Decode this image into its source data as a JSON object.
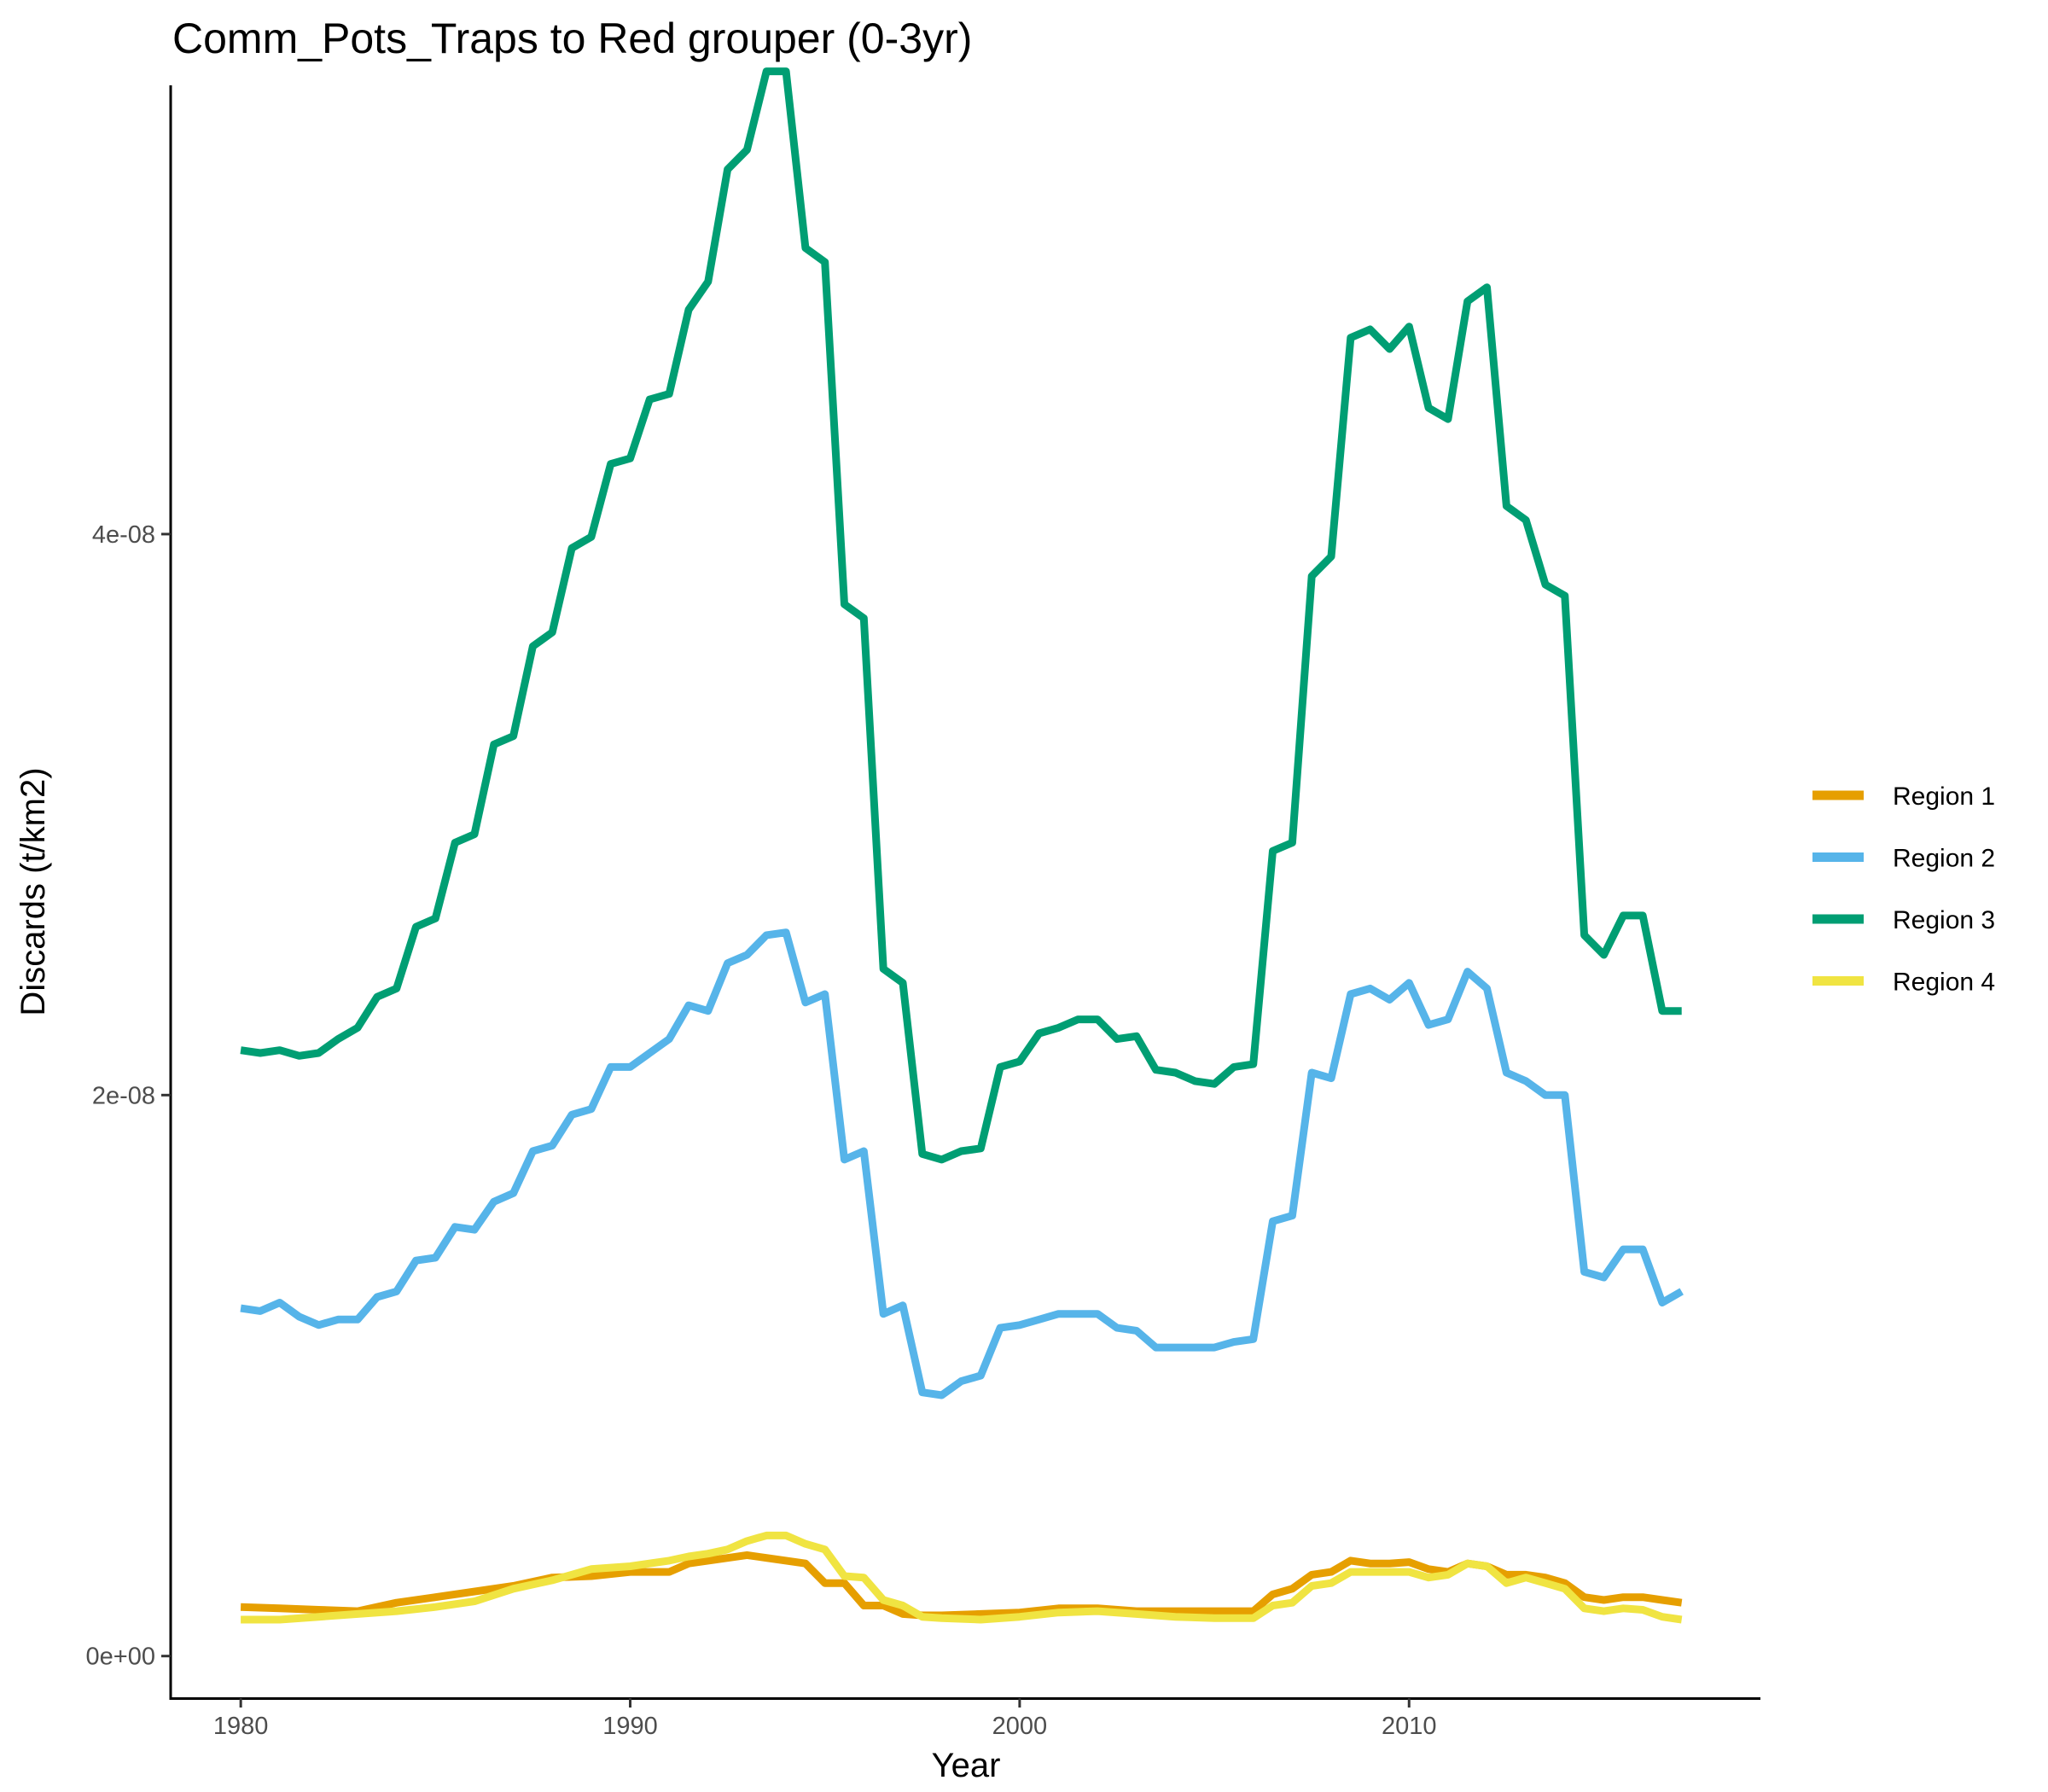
{
  "chart_data": {
    "type": "line",
    "title": "Comm_Pots_Traps to Red grouper (0-3yr)",
    "xlabel": "Year",
    "ylabel": "Discards (t/km2)",
    "xlim": [
      1978.2,
      2019.0
    ],
    "ylim": [
      -1.5e-09,
      5.6e-08
    ],
    "x_ticks": [
      {
        "value": 1980,
        "label": "1980"
      },
      {
        "value": 1990,
        "label": "1990"
      },
      {
        "value": 2000,
        "label": "2000"
      },
      {
        "value": 2010,
        "label": "2010"
      }
    ],
    "y_ticks": [
      {
        "value": 0,
        "label": "0e+00"
      },
      {
        "value": 2e-08,
        "label": "2e-08"
      },
      {
        "value": 4e-08,
        "label": "4e-08"
      }
    ],
    "grid": false,
    "legend": "right",
    "series": [
      {
        "name": "Region 1",
        "color": "#E69F00",
        "x": [
          1980.0,
          1981.0,
          1982.0,
          1983.0,
          1984.0,
          1985.0,
          1986.0,
          1987.0,
          1988.0,
          1989.0,
          1990.0,
          1991.0,
          1991.5,
          1992.0,
          1992.5,
          1993.0,
          1993.5,
          1994.0,
          1994.5,
          1995.0,
          1995.5,
          1996.0,
          1996.5,
          1997.0,
          1997.5,
          1998.0,
          1999.0,
          2000.0,
          2001.0,
          2002.0,
          2003.0,
          2004.0,
          2005.0,
          2006.0,
          2006.5,
          2007.0,
          2007.5,
          2008.0,
          2008.5,
          2009.0,
          2009.5,
          2010.0,
          2010.5,
          2011.0,
          2011.5,
          2012.0,
          2012.5,
          2013.0,
          2013.5,
          2014.0,
          2014.5,
          2015.0,
          2015.5,
          2016.0,
          2016.5,
          2017.0
        ],
        "values": [
          1.75e-09,
          1.7e-09,
          1.65e-09,
          1.6e-09,
          1.9e-09,
          2.1e-09,
          2.3e-09,
          2.5e-09,
          2.8e-09,
          2.85e-09,
          3e-09,
          3e-09,
          3.3e-09,
          3.4e-09,
          3.5e-09,
          3.6e-09,
          3.5e-09,
          3.4e-09,
          3.3e-09,
          2.6e-09,
          2.6e-09,
          1.8e-09,
          1.8e-09,
          1.5e-09,
          1.45e-09,
          1.45e-09,
          1.5e-09,
          1.55e-09,
          1.7e-09,
          1.7e-09,
          1.6e-09,
          1.6e-09,
          1.6e-09,
          1.6e-09,
          2.2e-09,
          2.4e-09,
          2.9e-09,
          3e-09,
          3.4e-09,
          3.3e-09,
          3.3e-09,
          3.35e-09,
          3.1e-09,
          3e-09,
          3.3e-09,
          3.2e-09,
          2.9e-09,
          2.9e-09,
          2.8e-09,
          2.6e-09,
          2.1e-09,
          2e-09,
          2.1e-09,
          2.1e-09,
          2e-09,
          1.9e-09
        ]
      },
      {
        "name": "Region 2",
        "color": "#56B4E9",
        "x": [
          1980.0,
          1980.5,
          1981.0,
          1981.5,
          1982.0,
          1982.5,
          1983.0,
          1983.5,
          1984.0,
          1984.5,
          1985.0,
          1985.5,
          1986.0,
          1986.5,
          1987.0,
          1987.5,
          1988.0,
          1988.5,
          1989.0,
          1989.5,
          1990.0,
          1990.5,
          1991.0,
          1991.5,
          1992.0,
          1992.5,
          1993.0,
          1993.5,
          1994.0,
          1994.5,
          1995.0,
          1995.5,
          1996.0,
          1996.5,
          1997.0,
          1997.5,
          1998.0,
          1998.5,
          1999.0,
          1999.5,
          2000.0,
          2000.5,
          2001.0,
          2001.5,
          2002.0,
          2002.5,
          2003.0,
          2003.5,
          2004.0,
          2004.5,
          2005.0,
          2005.5,
          2006.0,
          2006.5,
          2007.0,
          2007.5,
          2008.0,
          2008.5,
          2009.0,
          2009.5,
          2010.0,
          2010.5,
          2011.0,
          2011.5,
          2012.0,
          2012.5,
          2013.0,
          2013.5,
          2014.0,
          2014.5,
          2015.0,
          2015.5,
          2016.0,
          2016.5,
          2017.0
        ],
        "values": [
          1.24e-08,
          1.23e-08,
          1.26e-08,
          1.21e-08,
          1.18e-08,
          1.2e-08,
          1.2e-08,
          1.28e-08,
          1.3e-08,
          1.41e-08,
          1.42e-08,
          1.53e-08,
          1.52e-08,
          1.62e-08,
          1.65e-08,
          1.8e-08,
          1.82e-08,
          1.93e-08,
          1.95e-08,
          2.1e-08,
          2.1e-08,
          2.15e-08,
          2.2e-08,
          2.32e-08,
          2.3e-08,
          2.47e-08,
          2.5e-08,
          2.57e-08,
          2.58e-08,
          2.33e-08,
          2.36e-08,
          1.77e-08,
          1.8e-08,
          1.22e-08,
          1.25e-08,
          9.4e-09,
          9.3e-09,
          9.8e-09,
          1e-08,
          1.17e-08,
          1.18e-08,
          1.2e-08,
          1.22e-08,
          1.22e-08,
          1.22e-08,
          1.17e-08,
          1.16e-08,
          1.1e-08,
          1.1e-08,
          1.1e-08,
          1.1e-08,
          1.12e-08,
          1.13e-08,
          1.55e-08,
          1.57e-08,
          2.08e-08,
          2.06e-08,
          2.36e-08,
          2.38e-08,
          2.34e-08,
          2.4e-08,
          2.25e-08,
          2.27e-08,
          2.44e-08,
          2.38e-08,
          2.08e-08,
          2.05e-08,
          2e-08,
          2e-08,
          1.37e-08,
          1.35e-08,
          1.45e-08,
          1.45e-08,
          1.26e-08,
          1.3e-08
        ]
      },
      {
        "name": "Region 3",
        "color": "#009E73",
        "x": [
          1980.0,
          1980.5,
          1981.0,
          1981.5,
          1982.0,
          1982.5,
          1983.0,
          1983.5,
          1984.0,
          1984.5,
          1985.0,
          1985.5,
          1986.0,
          1986.5,
          1987.0,
          1987.5,
          1988.0,
          1988.5,
          1989.0,
          1989.5,
          1990.0,
          1990.5,
          1991.0,
          1991.5,
          1992.0,
          1992.5,
          1993.0,
          1993.5,
          1994.0,
          1994.5,
          1995.0,
          1995.5,
          1996.0,
          1996.5,
          1997.0,
          1997.5,
          1998.0,
          1998.5,
          1999.0,
          1999.5,
          2000.0,
          2000.5,
          2001.0,
          2001.5,
          2002.0,
          2002.5,
          2003.0,
          2003.5,
          2004.0,
          2004.5,
          2005.0,
          2005.5,
          2006.0,
          2006.5,
          2007.0,
          2007.5,
          2008.0,
          2008.5,
          2009.0,
          2009.5,
          2010.0,
          2010.5,
          2011.0,
          2011.5,
          2012.0,
          2012.5,
          2013.0,
          2013.5,
          2014.0,
          2014.5,
          2015.0,
          2015.5,
          2016.0,
          2016.5,
          2017.0
        ],
        "values": [
          2.16e-08,
          2.15e-08,
          2.16e-08,
          2.14e-08,
          2.15e-08,
          2.2e-08,
          2.24e-08,
          2.35e-08,
          2.38e-08,
          2.6e-08,
          2.63e-08,
          2.9e-08,
          2.93e-08,
          3.25e-08,
          3.28e-08,
          3.6e-08,
          3.65e-08,
          3.95e-08,
          3.99e-08,
          4.25e-08,
          4.27e-08,
          4.48e-08,
          4.5e-08,
          4.8e-08,
          4.9e-08,
          5.3e-08,
          5.37e-08,
          5.65e-08,
          5.65e-08,
          5.02e-08,
          4.97e-08,
          3.75e-08,
          3.7e-08,
          2.45e-08,
          2.4e-08,
          1.79e-08,
          1.77e-08,
          1.8e-08,
          1.81e-08,
          2.1e-08,
          2.12e-08,
          2.22e-08,
          2.24e-08,
          2.27e-08,
          2.27e-08,
          2.2e-08,
          2.21e-08,
          2.09e-08,
          2.08e-08,
          2.05e-08,
          2.04e-08,
          2.1e-08,
          2.11e-08,
          2.87e-08,
          2.9e-08,
          3.85e-08,
          3.92e-08,
          4.7e-08,
          4.73e-08,
          4.66e-08,
          4.74e-08,
          4.45e-08,
          4.41e-08,
          4.83e-08,
          4.88e-08,
          4.1e-08,
          4.05e-08,
          3.82e-08,
          3.78e-08,
          2.57e-08,
          2.5e-08,
          2.64e-08,
          2.64e-08,
          2.3e-08,
          2.3e-08
        ]
      },
      {
        "name": "Region 4",
        "color": "#F0E442",
        "x": [
          1980.0,
          1981.0,
          1982.0,
          1983.0,
          1984.0,
          1985.0,
          1986.0,
          1987.0,
          1988.0,
          1989.0,
          1990.0,
          1991.0,
          1991.5,
          1992.0,
          1992.5,
          1993.0,
          1993.5,
          1994.0,
          1994.5,
          1995.0,
          1995.5,
          1996.0,
          1996.5,
          1997.0,
          1997.5,
          1998.0,
          1999.0,
          2000.0,
          2001.0,
          2002.0,
          2003.0,
          2004.0,
          2005.0,
          2006.0,
          2006.5,
          2007.0,
          2007.5,
          2008.0,
          2008.5,
          2009.0,
          2009.5,
          2010.0,
          2010.5,
          2011.0,
          2011.5,
          2012.0,
          2012.5,
          2013.0,
          2013.5,
          2014.0,
          2014.5,
          2015.0,
          2015.5,
          2016.0,
          2016.5,
          2017.0
        ],
        "values": [
          1.3e-09,
          1.3e-09,
          1.4e-09,
          1.5e-09,
          1.6e-09,
          1.75e-09,
          1.95e-09,
          2.4e-09,
          2.7e-09,
          3.1e-09,
          3.2e-09,
          3.4e-09,
          3.55e-09,
          3.65e-09,
          3.8e-09,
          4.1e-09,
          4.3e-09,
          4.3e-09,
          4e-09,
          3.8e-09,
          2.85e-09,
          2.8e-09,
          2e-09,
          1.8e-09,
          1.4e-09,
          1.35e-09,
          1.3e-09,
          1.4e-09,
          1.55e-09,
          1.6e-09,
          1.5e-09,
          1.4e-09,
          1.35e-09,
          1.35e-09,
          1.8e-09,
          1.9e-09,
          2.5e-09,
          2.6e-09,
          3e-09,
          3e-09,
          3e-09,
          3e-09,
          2.8e-09,
          2.9e-09,
          3.3e-09,
          3.2e-09,
          2.6e-09,
          2.8e-09,
          2.6e-09,
          2.4e-09,
          1.7e-09,
          1.6e-09,
          1.7e-09,
          1.65e-09,
          1.4e-09,
          1.3e-09
        ]
      }
    ]
  }
}
